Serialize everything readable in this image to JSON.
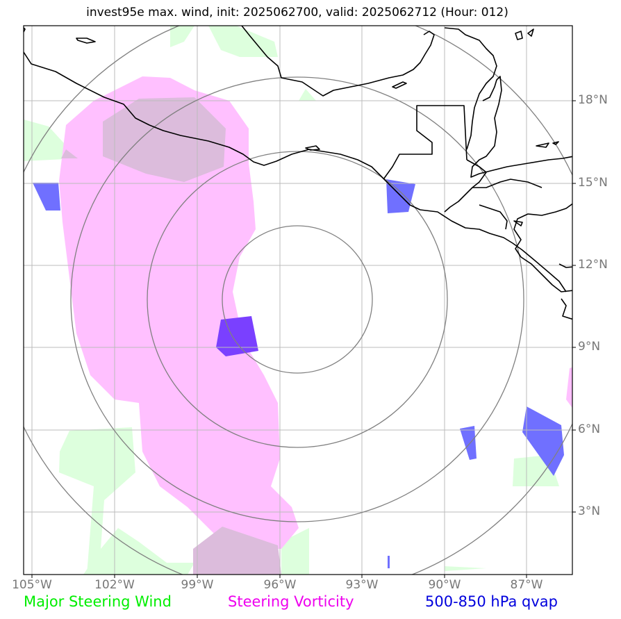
{
  "title": "invest95e max. wind, init: 2025062700, valid: 2025062712 (Hour: 012)",
  "lon_labels": [
    "105°W",
    "102°W",
    "99°W",
    "96°W",
    "93°W",
    "90°W",
    "87°W"
  ],
  "lat_labels": [
    "18°N",
    "15°N",
    "12°N",
    "9°N",
    "6°N",
    "3°N"
  ],
  "legend": [
    {
      "label": "Major Steering Wind",
      "color": "#00ee00"
    },
    {
      "label": "Steering Vorticity",
      "color": "#ee00ee"
    },
    {
      "label": "500-850 hPa qvap",
      "color": "#0000dd"
    }
  ],
  "colors": {
    "wind_fill": "#ddffdd",
    "vorticity_fill": "#ffc0ff",
    "overlap_fill": "#dcbcdc",
    "qvap_fill": "#7070ff",
    "qvap_dark": "#7a40ff",
    "gridline": "#bbbbbb",
    "range_ring": "#808080",
    "coastline": "#000000"
  }
}
